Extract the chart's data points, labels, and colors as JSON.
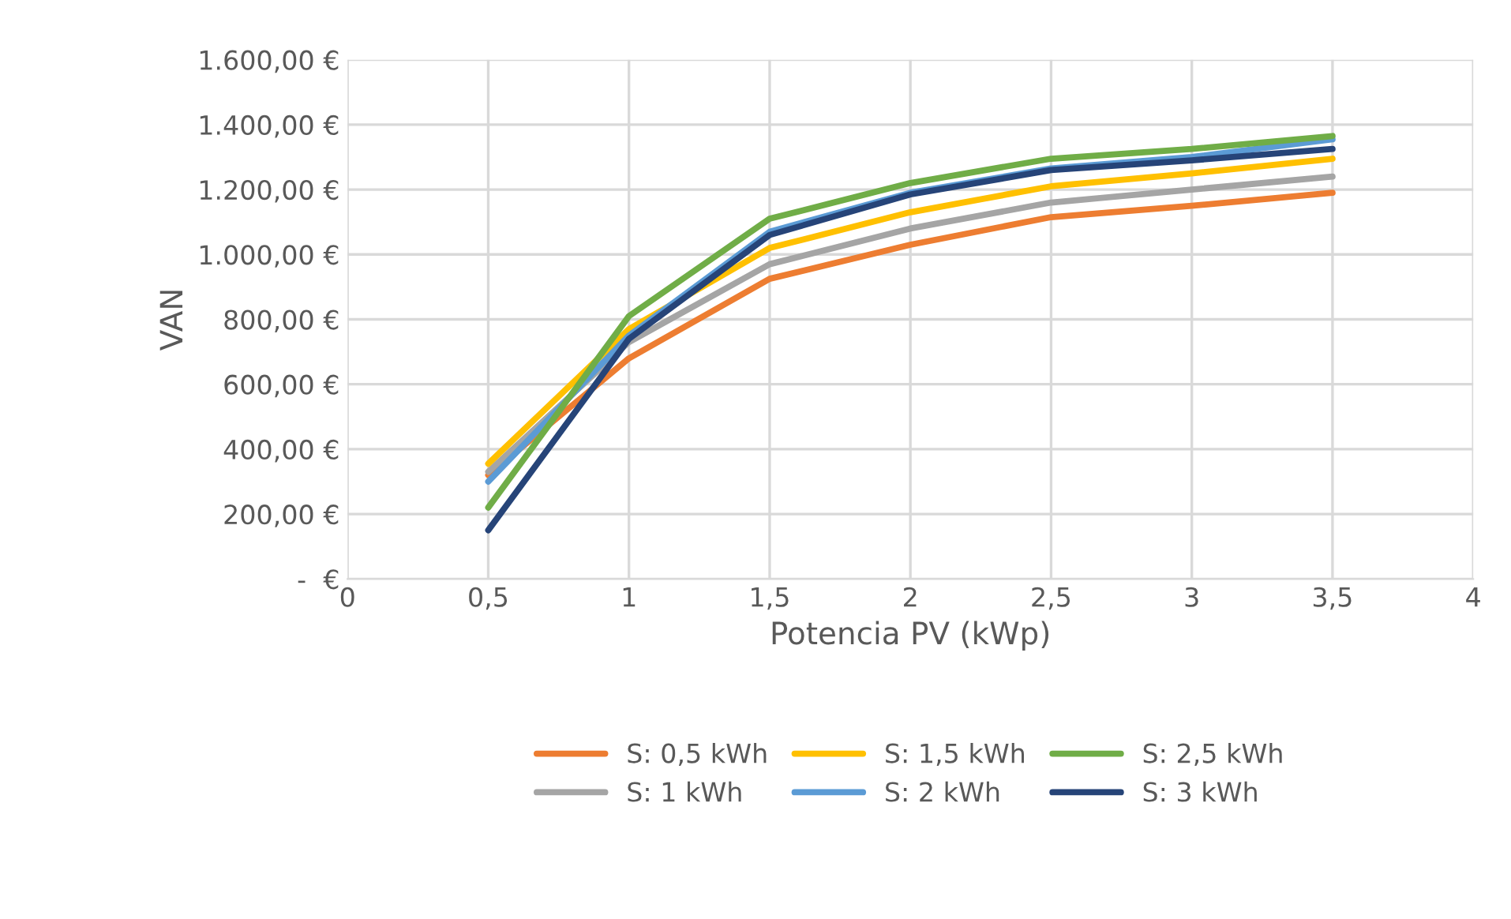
{
  "chart_data": {
    "type": "line",
    "xlabel": "Potencia PV (kWp)",
    "ylabel": "VAN",
    "x": [
      0.5,
      1,
      1.5,
      2,
      2.5,
      3,
      3.5
    ],
    "xlim": [
      0,
      4
    ],
    "xticks": [
      0,
      {
        "value": 0.5,
        "label": "0,5"
      },
      1,
      {
        "value": 1.5,
        "label": "1,5"
      },
      2,
      {
        "value": 2.5,
        "label": "2,5"
      },
      3,
      {
        "value": 3.5,
        "label": "3,5"
      },
      4
    ],
    "ylim": [
      0,
      1600
    ],
    "yticks": [
      {
        "value": 0,
        "label": "-  €"
      },
      {
        "value": 200,
        "label": "200,00 €"
      },
      {
        "value": 400,
        "label": "400,00 €"
      },
      {
        "value": 600,
        "label": "600,00 €"
      },
      {
        "value": 800,
        "label": "800,00 €"
      },
      {
        "value": 1000,
        "label": "1.000,00 €"
      },
      {
        "value": 1200,
        "label": "1.200,00 €"
      },
      {
        "value": 1400,
        "label": "1.400,00 €"
      },
      {
        "value": 1600,
        "label": "1.600,00 €"
      }
    ],
    "grid": true,
    "legend": "bottom",
    "marker": "none",
    "line_style": "solid",
    "series": [
      {
        "name": "S: 0,5 kWh",
        "color": "#ed7d31",
        "values": [
          320,
          680,
          925,
          1030,
          1115,
          1150,
          1190
        ]
      },
      {
        "name": "S: 1 kWh",
        "color": "#a5a5a5",
        "values": [
          330,
          730,
          970,
          1080,
          1160,
          1200,
          1240
        ]
      },
      {
        "name": "S: 1,5 kWh",
        "color": "#ffc000",
        "values": [
          355,
          770,
          1020,
          1130,
          1210,
          1250,
          1295
        ]
      },
      {
        "name": "S: 2 kWh",
        "color": "#5b9bd5",
        "values": [
          300,
          750,
          1070,
          1190,
          1265,
          1300,
          1355
        ]
      },
      {
        "name": "S: 2,5 kWh",
        "color": "#70ad47",
        "values": [
          220,
          810,
          1110,
          1220,
          1295,
          1325,
          1365
        ]
      },
      {
        "name": "S: 3 kWh",
        "color": "#264478",
        "values": [
          150,
          740,
          1060,
          1185,
          1260,
          1290,
          1325
        ]
      }
    ]
  }
}
